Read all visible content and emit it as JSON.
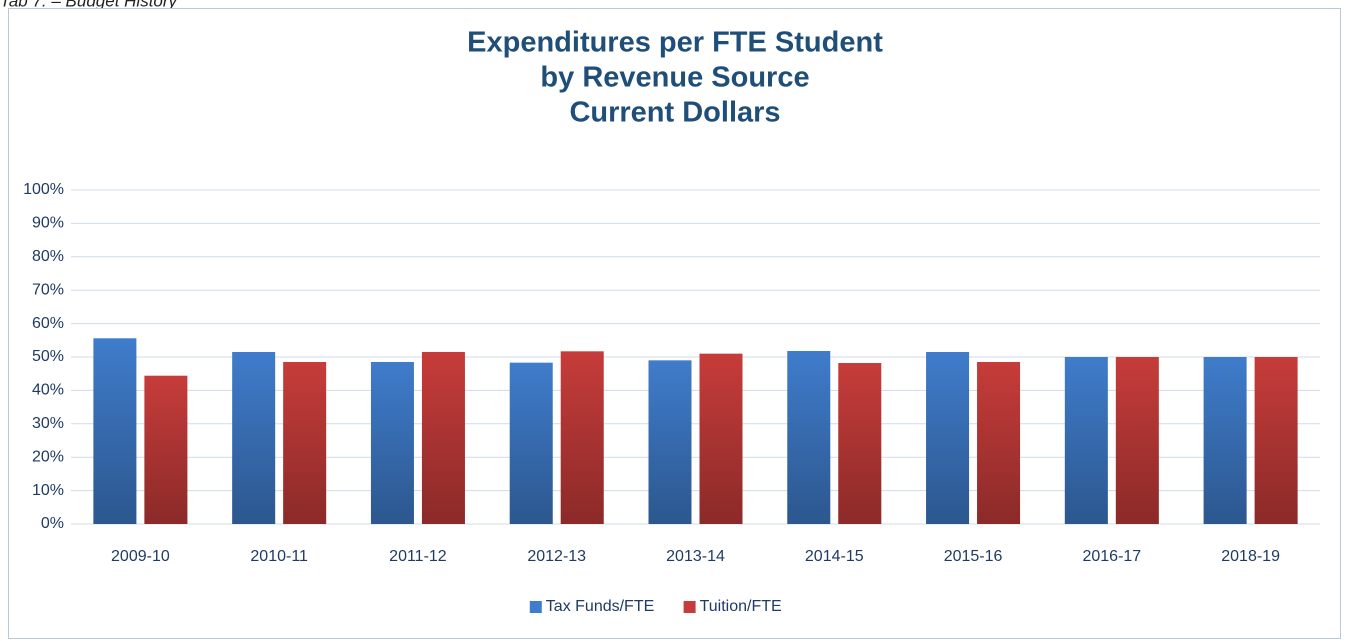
{
  "header": "Tab 7. – Budget History",
  "chart_data": {
    "type": "bar",
    "title": [
      "Expenditures per FTE Student",
      "by Revenue Source",
      "Current Dollars"
    ],
    "categories": [
      "2009-10",
      "2010-11",
      "2011-12",
      "2012-13",
      "2013-14",
      "2014-15",
      "2015-16",
      "2016-17",
      "2018-19"
    ],
    "series": [
      {
        "name": "Tax Funds/FTE",
        "color": "#3f7ccb",
        "values": [
          55.6,
          51.5,
          48.5,
          48.3,
          49,
          51.8,
          51.5,
          50,
          50
        ]
      },
      {
        "name": "Tuition/FTE",
        "color": "#c63c3a",
        "values": [
          44.4,
          48.5,
          51.5,
          51.7,
          51,
          48.2,
          48.5,
          50,
          50
        ]
      }
    ],
    "ylim": [
      0,
      100
    ],
    "yticks": [
      {
        "value": 0,
        "label": "0%"
      },
      {
        "value": 10,
        "label": "10%"
      },
      {
        "value": 20,
        "label": "20%"
      },
      {
        "value": 30,
        "label": "30%"
      },
      {
        "value": 40,
        "label": "40%"
      },
      {
        "value": 50,
        "label": "50%"
      },
      {
        "value": 60,
        "label": "60%"
      },
      {
        "value": 70,
        "label": "70%"
      },
      {
        "value": 80,
        "label": "80%"
      },
      {
        "value": 90,
        "label": "90%"
      },
      {
        "value": 100,
        "label": "100%"
      }
    ],
    "grid": true,
    "legend": "bottom"
  }
}
